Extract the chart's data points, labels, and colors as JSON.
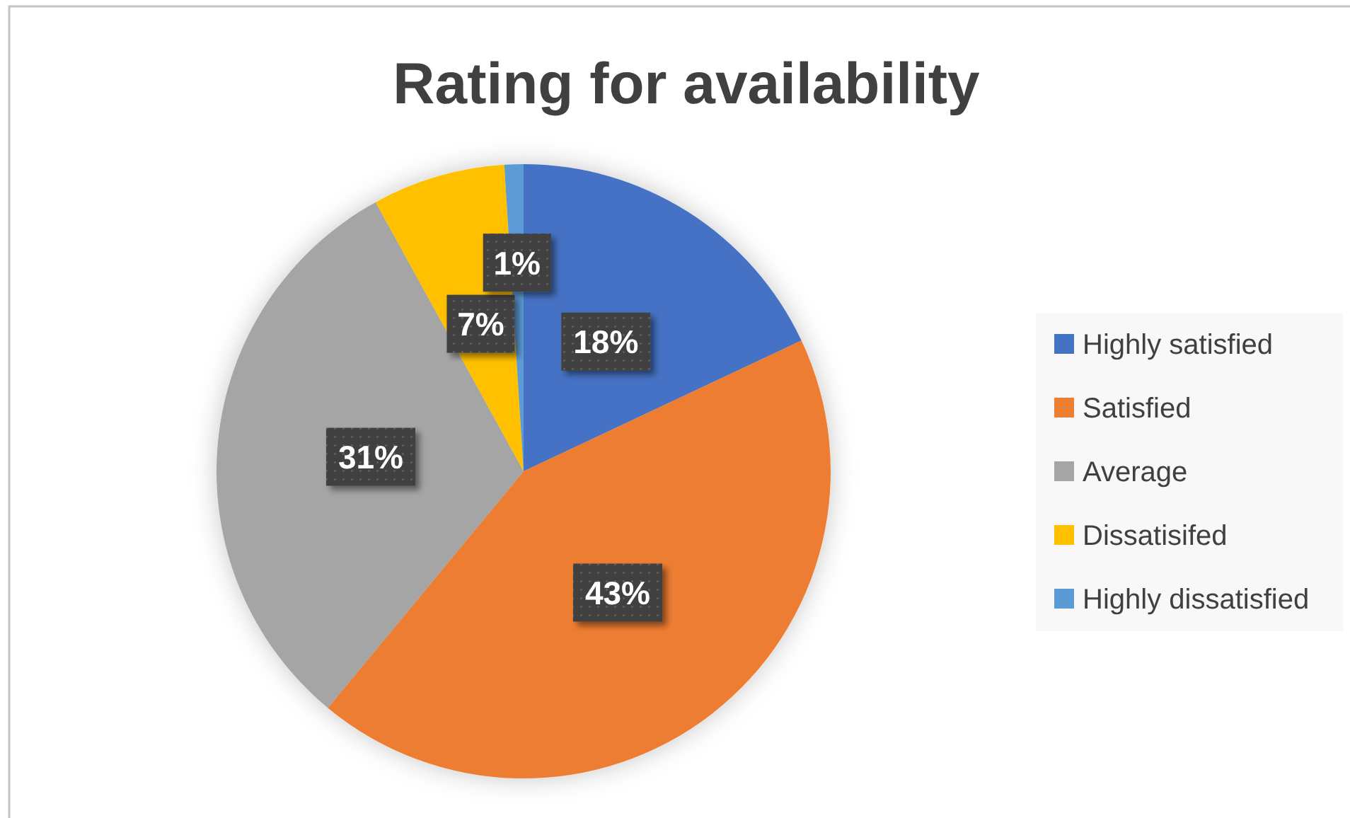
{
  "chart_data": {
    "type": "pie",
    "title": "Rating for availability",
    "categories": [
      "Highly satisfied",
      "Satisfied",
      "Average",
      "Dissatisifed",
      "Highly dissatisfied"
    ],
    "values": [
      18,
      43,
      31,
      7,
      1
    ],
    "colors": [
      "#4472c4",
      "#ed7d31",
      "#a5a5a5",
      "#ffc000",
      "#5b9bd5"
    ],
    "value_labels": [
      "18%",
      "43%",
      "31%",
      "7%",
      "1%"
    ],
    "legend": "right"
  }
}
